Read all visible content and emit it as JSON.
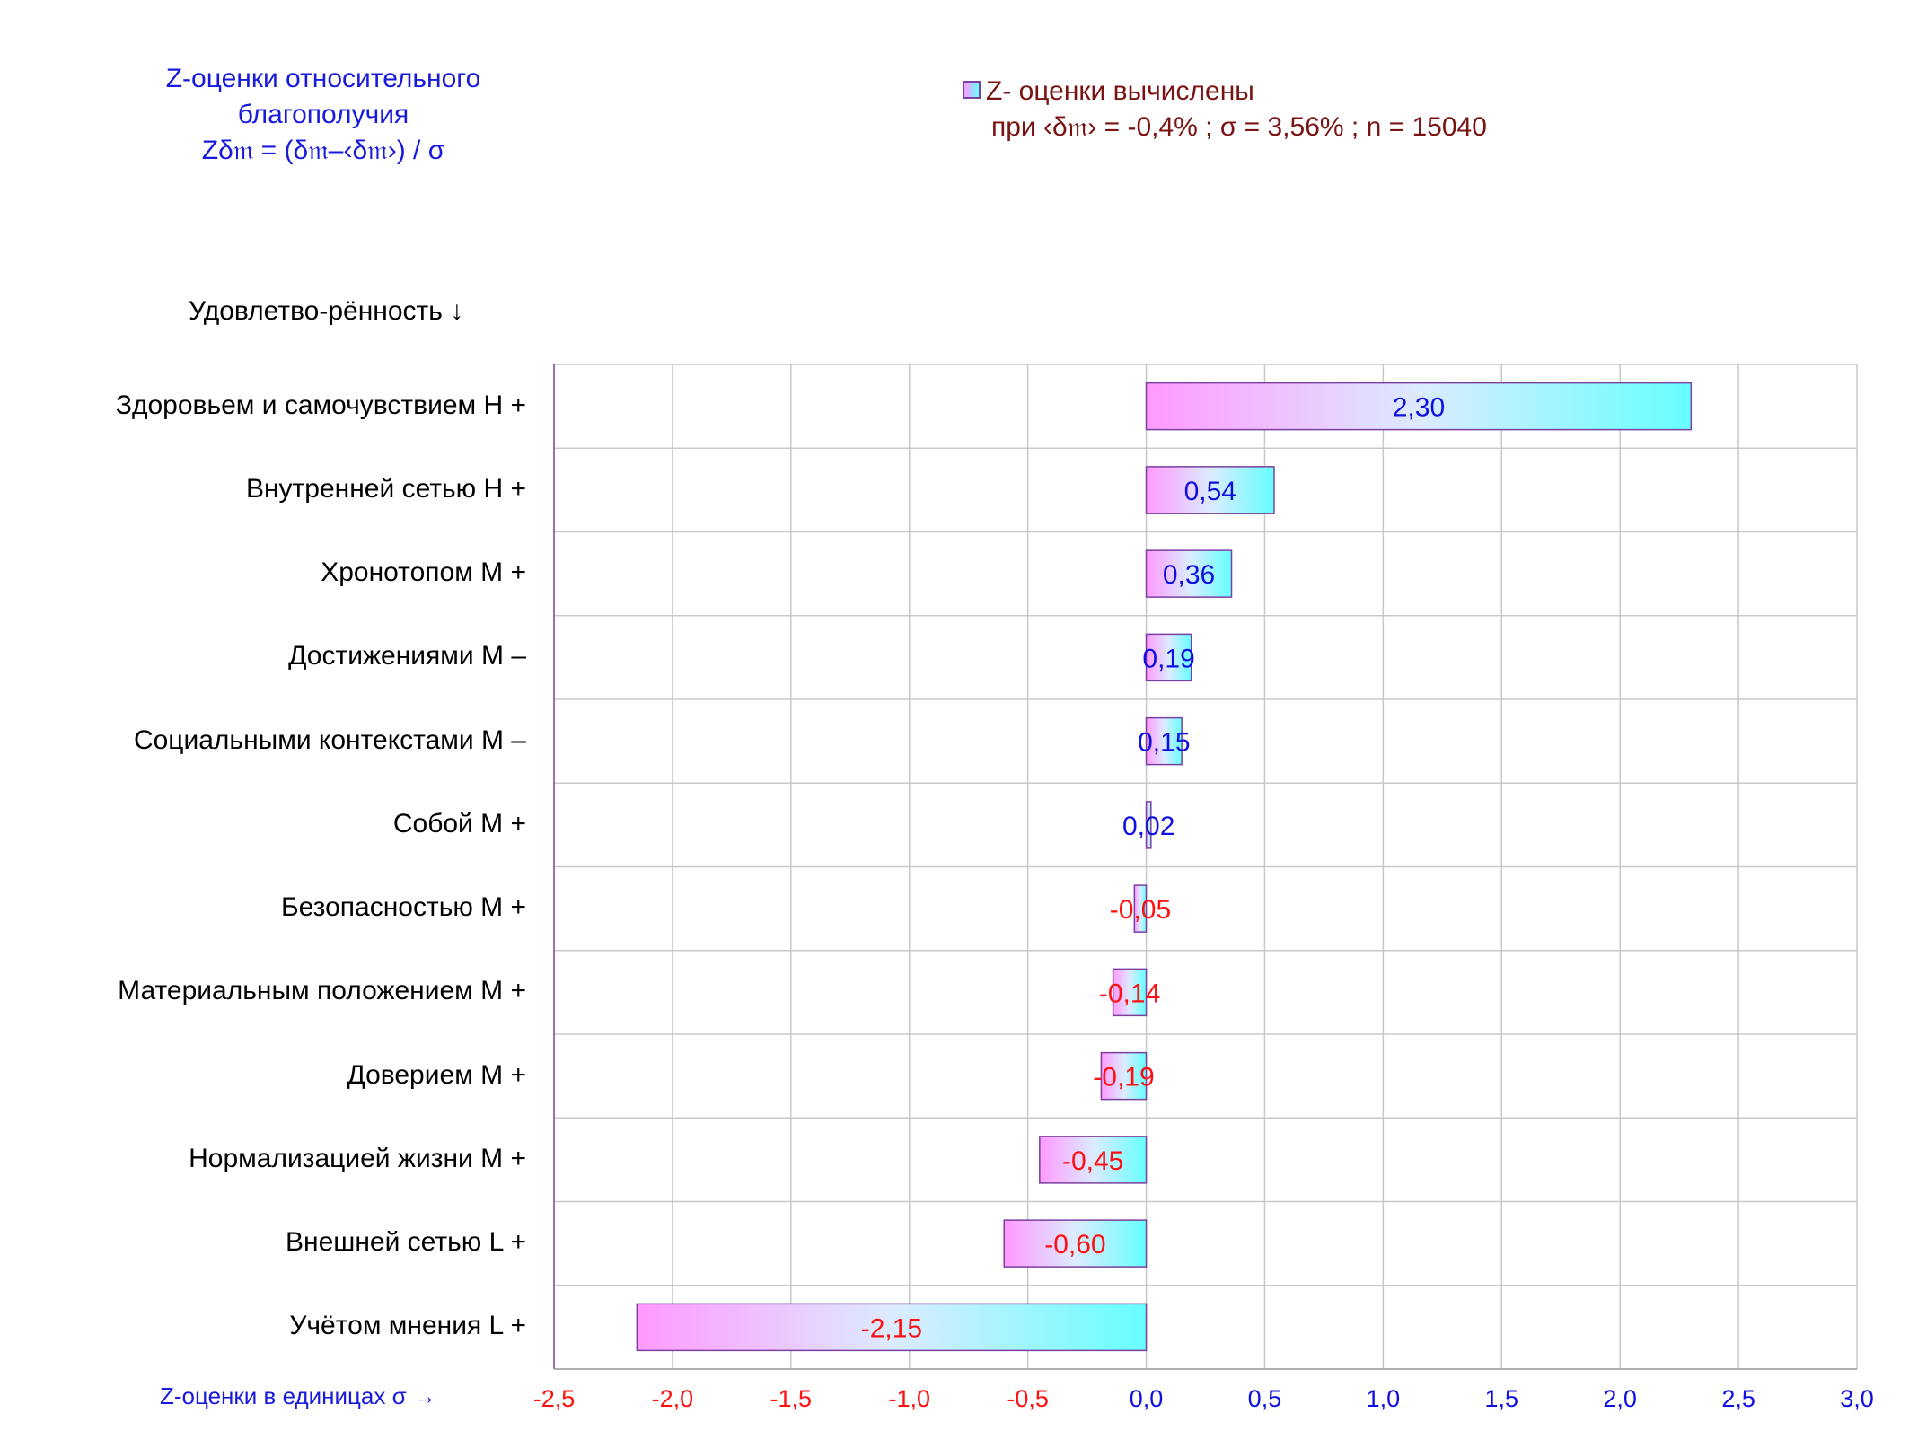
{
  "header": {
    "title_line1": "Z-оценки  относительного",
    "title_line2": "благополучия",
    "title_formula": "Zδ𝔪 = (δ𝔪–‹δ𝔪›) / σ"
  },
  "legend": {
    "line1": "Z- оценки вычислены",
    "line2": "при ‹δ𝔪› = -0,4% ; σ = 3,56% ; n = 15040"
  },
  "y_axis_heading": "Удовлетво-рённость ↓",
  "x_axis_caption": "Z-оценки в единицах σ →",
  "chart_data": {
    "type": "bar",
    "orientation": "horizontal",
    "categories": [
      "Здоровьем и самочувствием  H +",
      "Внутренней сетью  H +",
      "Хронотопом  M +",
      "Достижениями  M –",
      "Социальными контекстами  M –",
      "Собой  M +",
      "Безопасностью  M +",
      "Материальным положением  M +",
      "Доверием  M +",
      "Нормализацией жизни  M +",
      "Внешней сетью  L +",
      "Учётом мнения  L +"
    ],
    "values": [
      2.3,
      0.54,
      0.36,
      0.19,
      0.15,
      0.02,
      -0.05,
      -0.14,
      -0.19,
      -0.45,
      -0.6,
      -2.15
    ],
    "value_labels": [
      "2,30",
      "0,54",
      "0,36",
      "0,19",
      "0,15",
      "0,02",
      "-0,05",
      "-0,14",
      "-0,19",
      "-0,45",
      "-0,60",
      "-2,15"
    ],
    "xlim": [
      -2.5,
      3.0
    ],
    "x_ticks": [
      -2.5,
      -2.0,
      -1.5,
      -1.0,
      -0.5,
      0.0,
      0.5,
      1.0,
      1.5,
      2.0,
      2.5,
      3.0
    ],
    "x_tick_labels": [
      "-2,5",
      "-2,0",
      "-1,5",
      "-1,0",
      "-0,5",
      "0,0",
      "0,5",
      "1,0",
      "1,5",
      "2,0",
      "2,5",
      "3,0"
    ],
    "grid": true,
    "colors": {
      "positive": "#1010e0",
      "negative": "#ff1010",
      "bar_left": "#ff99ff",
      "bar_right": "#66ffff",
      "bar_border": "#7b3fa0",
      "grid": "#c8c8c8"
    }
  }
}
